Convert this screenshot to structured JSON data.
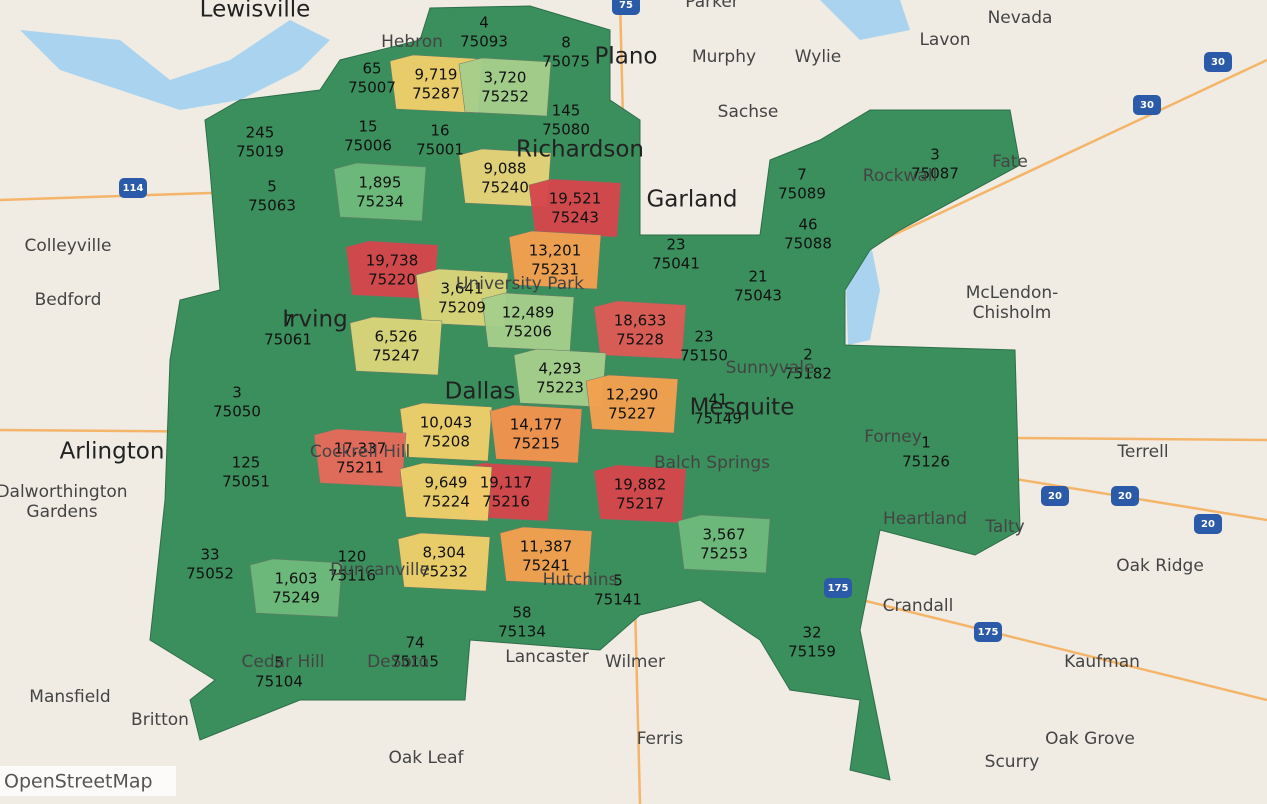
{
  "map": {
    "attribution": "OpenStreetMap",
    "places": [
      "Lewisville",
      "Hebron",
      "Plano",
      "Parker",
      "Murphy",
      "Wylie",
      "Nevada",
      "Lavon",
      "Sachse",
      "Richardson",
      "Garland",
      "Fate",
      "Rockwall",
      "Colleyville",
      "Bedford",
      "Irving",
      "McLendon-",
      "Chisholm",
      "Sunnyvale",
      "Mesquite",
      "Dallas",
      "University Park",
      "Arlington",
      "Dalworthington",
      "Gardens",
      "Balch Springs",
      "Forney",
      "Terrell",
      "Heartland",
      "Talty",
      "Oak Ridge",
      "Cockrell Hill",
      "Duncanville",
      "Hutchins",
      "Crandall",
      "Kaufman",
      "Cedar Hill",
      "DeSoto",
      "Lancaster",
      "Wilmer",
      "Mansfield",
      "Britton",
      "Ferris",
      "Oak Leaf",
      "Oak Grove",
      "Scurry"
    ],
    "shields": [
      "75",
      "114",
      "30",
      "30",
      "20",
      "20",
      "20",
      "175",
      "175"
    ],
    "regions": [
      {
        "value": "4",
        "zip": "75093",
        "color": "#3a8f5c"
      },
      {
        "value": "8",
        "zip": "75075",
        "color": "#3a8f5c"
      },
      {
        "value": "65",
        "zip": "75007",
        "color": "#3a8f5c"
      },
      {
        "value": "9,719",
        "zip": "75287",
        "color": "#f2d06b"
      },
      {
        "value": "3,720",
        "zip": "75252",
        "color": "#a6cf8c"
      },
      {
        "value": "145",
        "zip": "75080",
        "color": "#3a8f5c"
      },
      {
        "value": "245",
        "zip": "75019",
        "color": "#3a8f5c"
      },
      {
        "value": "15",
        "zip": "75006",
        "color": "#3a8f5c"
      },
      {
        "value": "16",
        "zip": "75001",
        "color": "#3a8f5c"
      },
      {
        "value": "9,088",
        "zip": "75240",
        "color": "#e8d47a"
      },
      {
        "value": "19,521",
        "zip": "75243",
        "color": "#d6454c"
      },
      {
        "value": "5",
        "zip": "75063",
        "color": "#3a8f5c"
      },
      {
        "value": "1,895",
        "zip": "75234",
        "color": "#6fba7c"
      },
      {
        "value": "7",
        "zip": "75089",
        "color": "#3a8f5c"
      },
      {
        "value": "3",
        "zip": "75087",
        "color": "#3a8f5c"
      },
      {
        "value": "46",
        "zip": "75088",
        "color": "#3a8f5c"
      },
      {
        "value": "23",
        "zip": "75041",
        "color": "#3a8f5c"
      },
      {
        "value": "13,201",
        "zip": "75231",
        "color": "#f5a04f"
      },
      {
        "value": "19,738",
        "zip": "75220",
        "color": "#d6454c"
      },
      {
        "value": "21",
        "zip": "75043",
        "color": "#3a8f5c"
      },
      {
        "value": "3,641",
        "zip": "75209",
        "color": "#dcd67a"
      },
      {
        "value": "12,489",
        "zip": "75206",
        "color": "#a6cf8c"
      },
      {
        "value": "18,633",
        "zip": "75228",
        "color": "#e05a55"
      },
      {
        "value": "7",
        "zip": "75061",
        "color": "#3a8f5c"
      },
      {
        "value": "23",
        "zip": "75150",
        "color": "#3a8f5c"
      },
      {
        "value": "6,526",
        "zip": "75247",
        "color": "#dcd67a"
      },
      {
        "value": "2",
        "zip": "75182",
        "color": "#3a8f5c"
      },
      {
        "value": "4,293",
        "zip": "75223",
        "color": "#a6cf8c"
      },
      {
        "value": "3",
        "zip": "75050",
        "color": "#3a8f5c"
      },
      {
        "value": "12,290",
        "zip": "75227",
        "color": "#f5a04f"
      },
      {
        "value": "41",
        "zip": "75149",
        "color": "#3a8f5c"
      },
      {
        "value": "10,043",
        "zip": "75208",
        "color": "#f2d06b"
      },
      {
        "value": "14,177",
        "zip": "75215",
        "color": "#f5934f"
      },
      {
        "value": "17,337",
        "zip": "75211",
        "color": "#e86a5a"
      },
      {
        "value": "1",
        "zip": "75126",
        "color": "#3a8f5c"
      },
      {
        "value": "125",
        "zip": "75051",
        "color": "#3a8f5c"
      },
      {
        "value": "19,117",
        "zip": "75216",
        "color": "#d6454c"
      },
      {
        "value": "19,882",
        "zip": "75217",
        "color": "#d6454c"
      },
      {
        "value": "9,649",
        "zip": "75224",
        "color": "#f2d06b"
      },
      {
        "value": "3,567",
        "zip": "75253",
        "color": "#6fba7c"
      },
      {
        "value": "11,387",
        "zip": "75241",
        "color": "#f5a04f"
      },
      {
        "value": "8,304",
        "zip": "75232",
        "color": "#f2d06b"
      },
      {
        "value": "33",
        "zip": "75052",
        "color": "#3a8f5c"
      },
      {
        "value": "120",
        "zip": "75116",
        "color": "#3a8f5c"
      },
      {
        "value": "1,603",
        "zip": "75249",
        "color": "#6fba7c"
      },
      {
        "value": "5",
        "zip": "75141",
        "color": "#3a8f5c"
      },
      {
        "value": "58",
        "zip": "75134",
        "color": "#3a8f5c"
      },
      {
        "value": "32",
        "zip": "75159",
        "color": "#3a8f5c"
      },
      {
        "value": "74",
        "zip": "75115",
        "color": "#3a8f5c"
      },
      {
        "value": "5",
        "zip": "75104",
        "color": "#3a8f5c"
      }
    ]
  }
}
